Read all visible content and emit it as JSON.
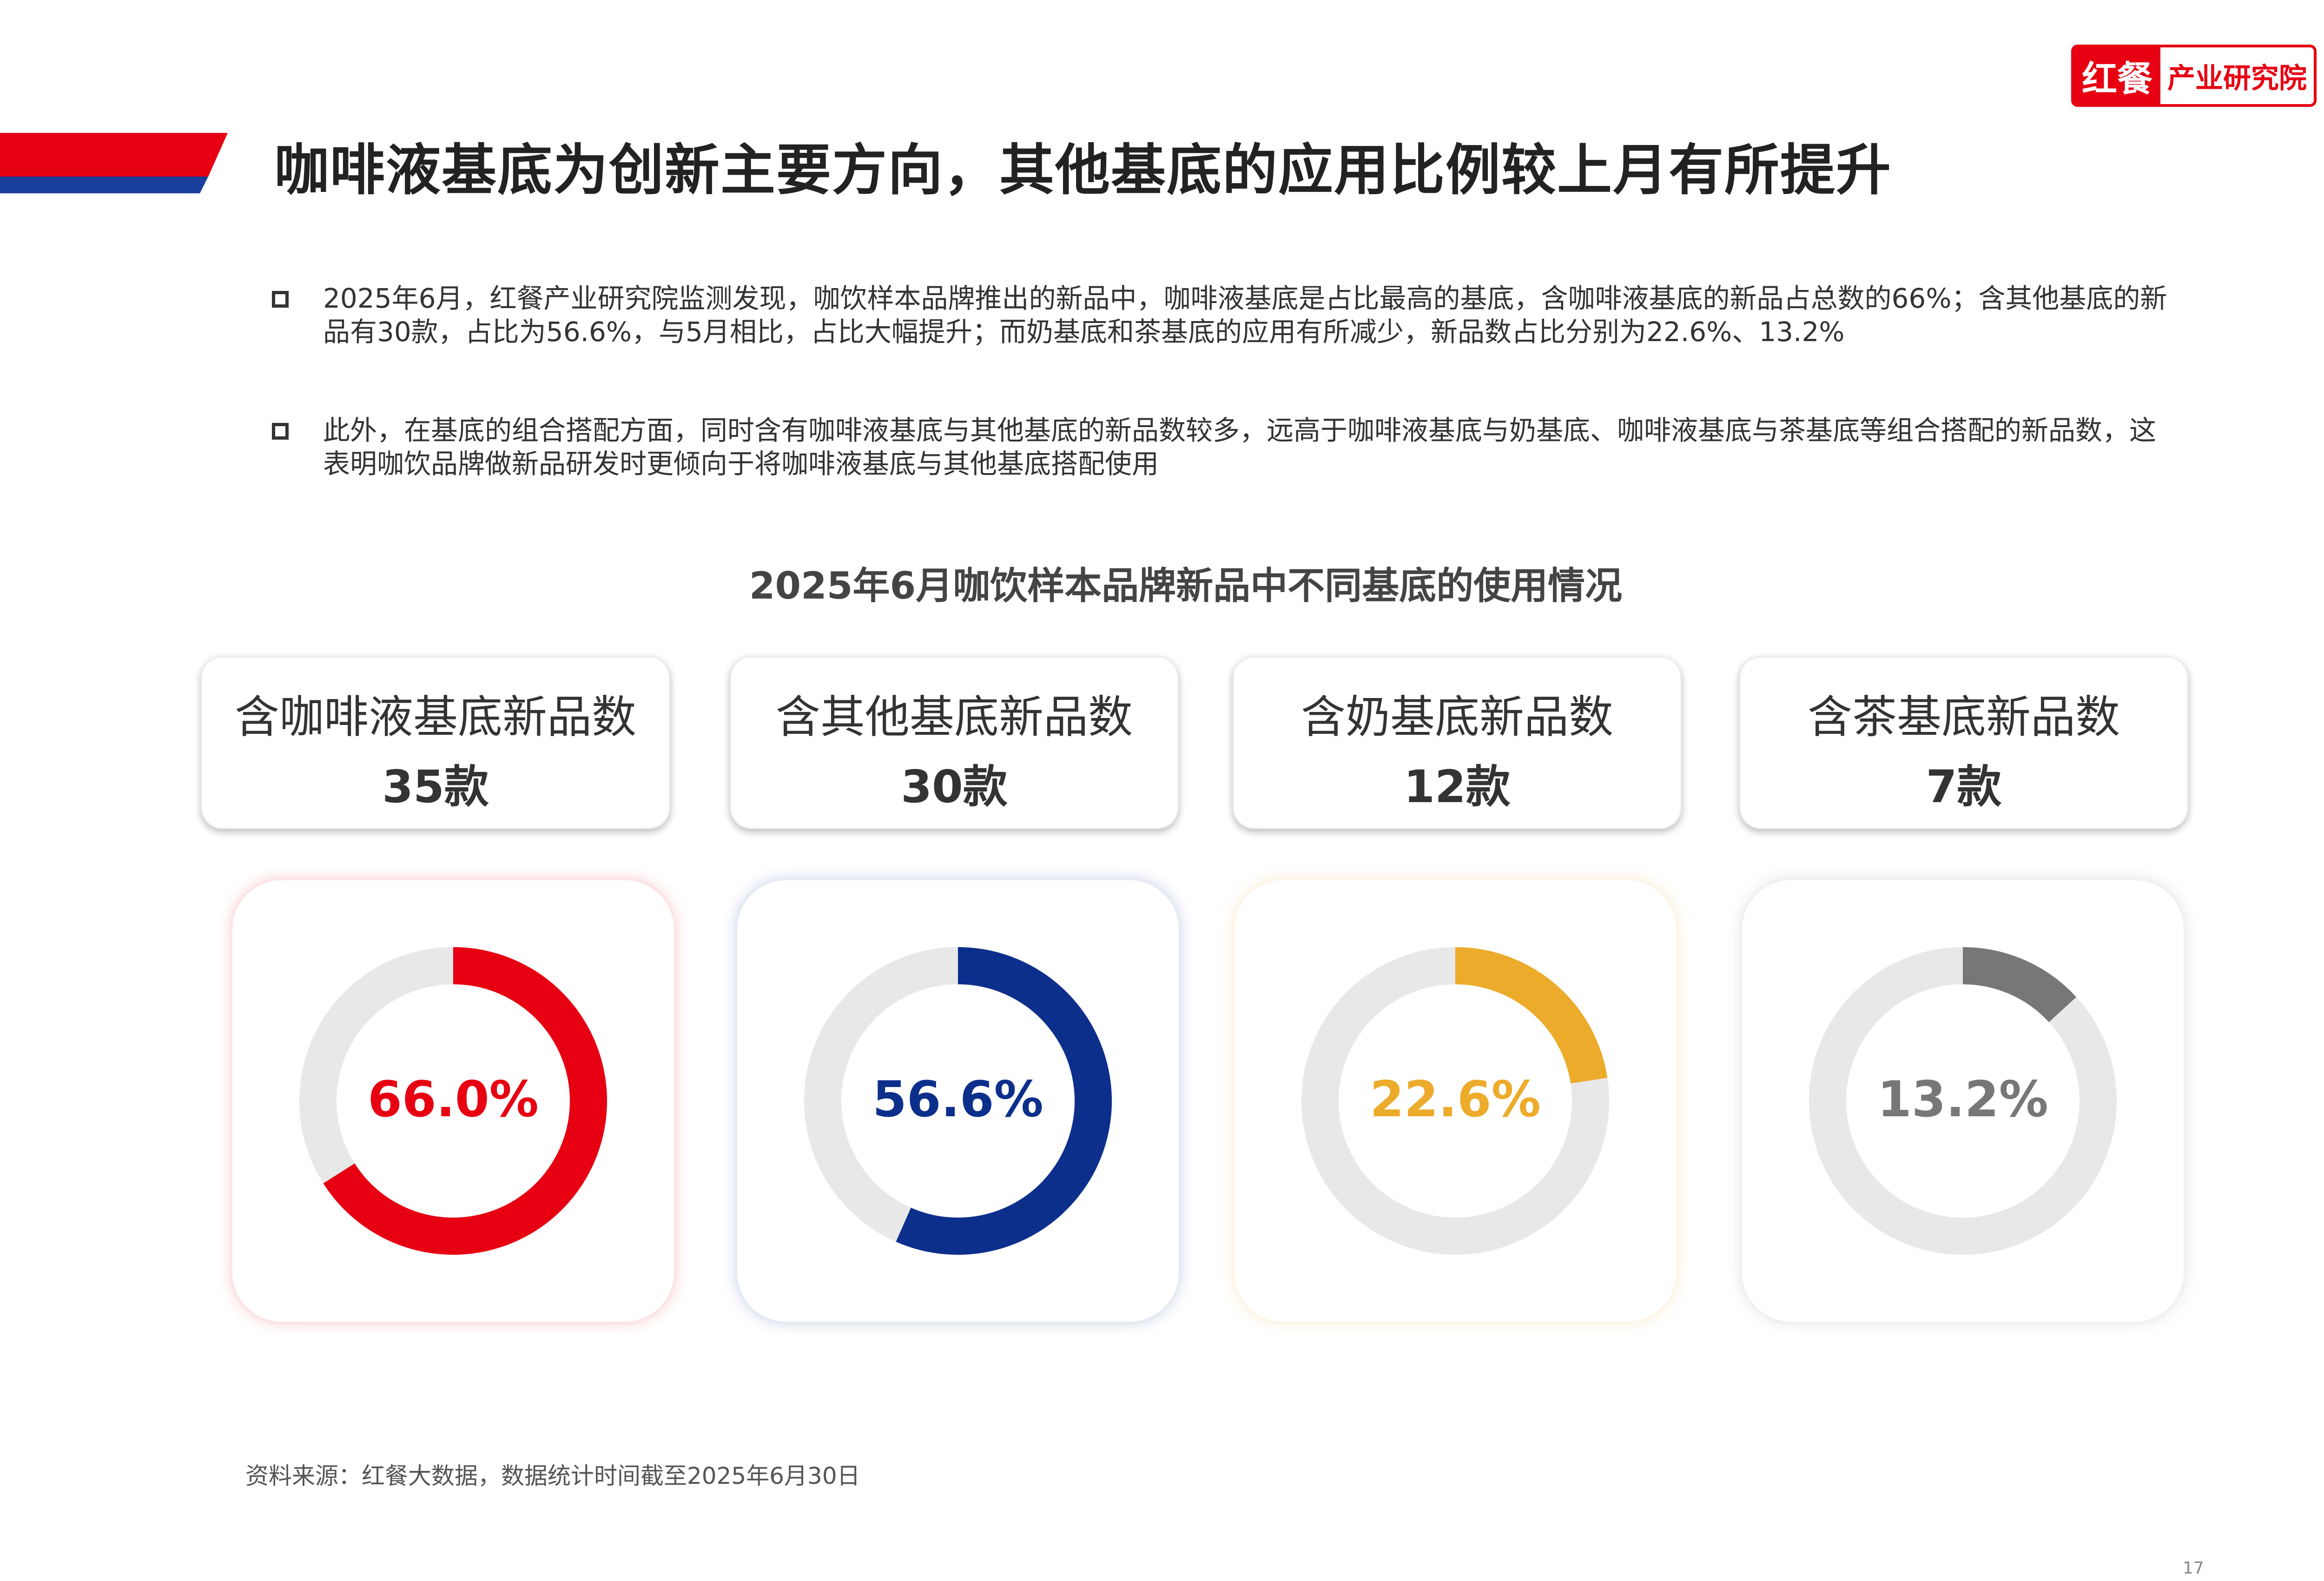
{
  "header": {
    "title": "咖啡液基底为创新主要方向，其他基底的应用比例较上月有所提升",
    "accent_colors": [
      "#e60012",
      "#1a3e9c"
    ]
  },
  "logo": {
    "brand": "红餐",
    "institute": "产业研究院",
    "color": "#e60012"
  },
  "bullets": [
    {
      "icon": "square-bullet-icon",
      "text": "2025年6月，红餐产业研究院监测发现，咖饮样本品牌推出的新品中，咖啡液基底是占比最高的基底，含咖啡液基底的新品占总数的66%；含其他基底的新品有30款，占比为56.6%，与5月相比，占比大幅提升；而奶基底和茶基底的应用有所减少，新品数占比分别为22.6%、13.2%"
    },
    {
      "icon": "square-bullet-icon",
      "text": "此外，在基底的组合搭配方面，同时含有咖啡液基底与其他基底的新品数较多，远高于咖啡液基底与奶基底、咖啡液基底与茶基底等组合搭配的新品数，这表明咖饮品牌做新品研发时更倾向于将咖啡液基底与其他基底搭配使用"
    }
  ],
  "chart_data": {
    "type": "donut",
    "title": "2025年6月咖饮样本品牌新品中不同基底的使用情况",
    "track_color": "#e8e8e8",
    "categories": [
      {
        "name": "含咖啡液基底新品数",
        "count": "35款",
        "percent": 66.0,
        "percent_label": "66.0%",
        "color": "#e60012"
      },
      {
        "name": "含其他基底新品数",
        "count": "30款",
        "percent": 56.6,
        "percent_label": "56.6%",
        "color": "#0d2f8c"
      },
      {
        "name": "含奶基底新品数",
        "count": "12款",
        "percent": 22.6,
        "percent_label": "22.6%",
        "color": "#edab2b"
      },
      {
        "name": "含茶基底新品数",
        "count": "7款",
        "percent": 13.2,
        "percent_label": "13.2%",
        "color": "#777777"
      }
    ]
  },
  "footer": {
    "source": "资料来源：红餐大数据，数据统计时间截至2025年6月30日",
    "page_number": "17"
  }
}
